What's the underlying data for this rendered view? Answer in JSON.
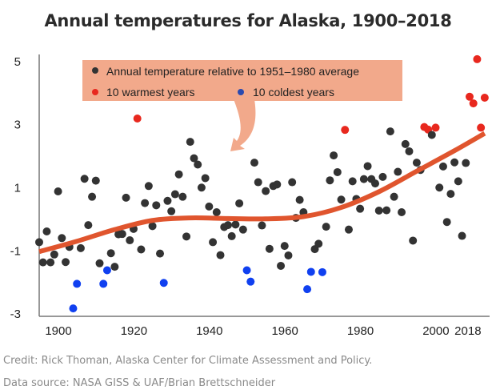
{
  "chart_data": {
    "type": "scatter",
    "title": "Annual temperatures for Alaska, 1900–2018",
    "xlabel": "",
    "ylabel": "",
    "xlim": [
      1900,
      2019.3
    ],
    "ylim": [
      -3.1,
      5.2
    ],
    "xticks": [
      1900,
      1920,
      1940,
      1960,
      1980,
      2000,
      2018
    ],
    "yticks": [
      5,
      3,
      1,
      -1,
      -3
    ],
    "grid": false,
    "legend_position": "top",
    "legend": [
      {
        "label": "Annual temperature relative to 1951–1980 average",
        "color": "#333333"
      },
      {
        "label": "10 warmest years",
        "color": "#e8281e"
      },
      {
        "label": "10 coldest years",
        "color": "#1040f0"
      }
    ],
    "colors": {
      "normal": "#333333",
      "warm": "#e8281e",
      "cold": "#1040f0",
      "trend": "#e0552e",
      "legend_bg": "#f2a98b"
    },
    "years_start": 1900,
    "values": [
      -0.75,
      -1.39,
      -0.41,
      -1.39,
      -1.14,
      0.86,
      -0.62,
      -1.38,
      -0.9,
      -2.85,
      -2.07,
      -0.94,
      1.26,
      -0.21,
      0.69,
      1.2,
      -1.42,
      -2.07,
      -1.64,
      -1.1,
      -1.53,
      -0.5,
      -0.49,
      0.66,
      -0.69,
      -0.33,
      3.17,
      -0.98,
      0.49,
      1.03,
      -0.24,
      0.42,
      -1.11,
      -2.04,
      0.56,
      0.23,
      0.77,
      1.4,
      0.69,
      -0.57,
      2.43,
      1.91,
      1.71,
      0.98,
      1.28,
      0.38,
      -0.75,
      0.2,
      -1.16,
      -0.27,
      -0.21,
      -0.56,
      -0.19,
      0.48,
      -0.35,
      -1.64,
      -2.0,
      1.77,
      1.15,
      -0.22,
      0.87,
      -0.96,
      1.03,
      1.08,
      -1.5,
      -0.87,
      -1.17,
      1.15,
      0.02,
      0.59,
      0.2,
      -2.24,
      -1.69,
      -0.97,
      -0.8,
      -1.7,
      -0.26,
      1.21,
      2.0,
      1.47,
      0.6,
      2.81,
      -0.35,
      1.18,
      0.62,
      0.31,
      1.25,
      1.66,
      1.25,
      1.11,
      0.25,
      1.32,
      0.26,
      2.76,
      0.69,
      1.48,
      0.2,
      2.36,
      2.13,
      -0.7,
      1.77,
      1.54,
      2.9,
      2.82,
      2.65,
      2.88,
      0.98,
      1.65,
      -0.11,
      0.78,
      1.78,
      1.18,
      -0.55,
      1.76,
      3.86,
      3.65,
      5.05,
      2.88,
      3.83
    ],
    "warmest_years": [
      1926,
      1981,
      2002,
      2003,
      2005,
      2014,
      2015,
      2016,
      2017,
      2018
    ],
    "coldest_years": [
      1909,
      1910,
      1917,
      1918,
      1933,
      1955,
      1956,
      1971,
      1972,
      1975
    ],
    "trend": {
      "x": [
        1900,
        1910,
        1920,
        1930,
        1940,
        1950,
        1960,
        1970,
        1980,
        1990,
        2000,
        2010,
        2018
      ],
      "y": [
        -1.05,
        -0.72,
        -0.35,
        -0.06,
        0.02,
        0.0,
        -0.01,
        0.06,
        0.35,
        0.85,
        1.5,
        2.15,
        2.7
      ]
    }
  },
  "credits": {
    "line1": "Credit: Rick Thoman, Alaska Center for Climate Assessment and Policy.",
    "line2": "Data source: NASA GISS & UAF/Brian Brettschneider"
  }
}
